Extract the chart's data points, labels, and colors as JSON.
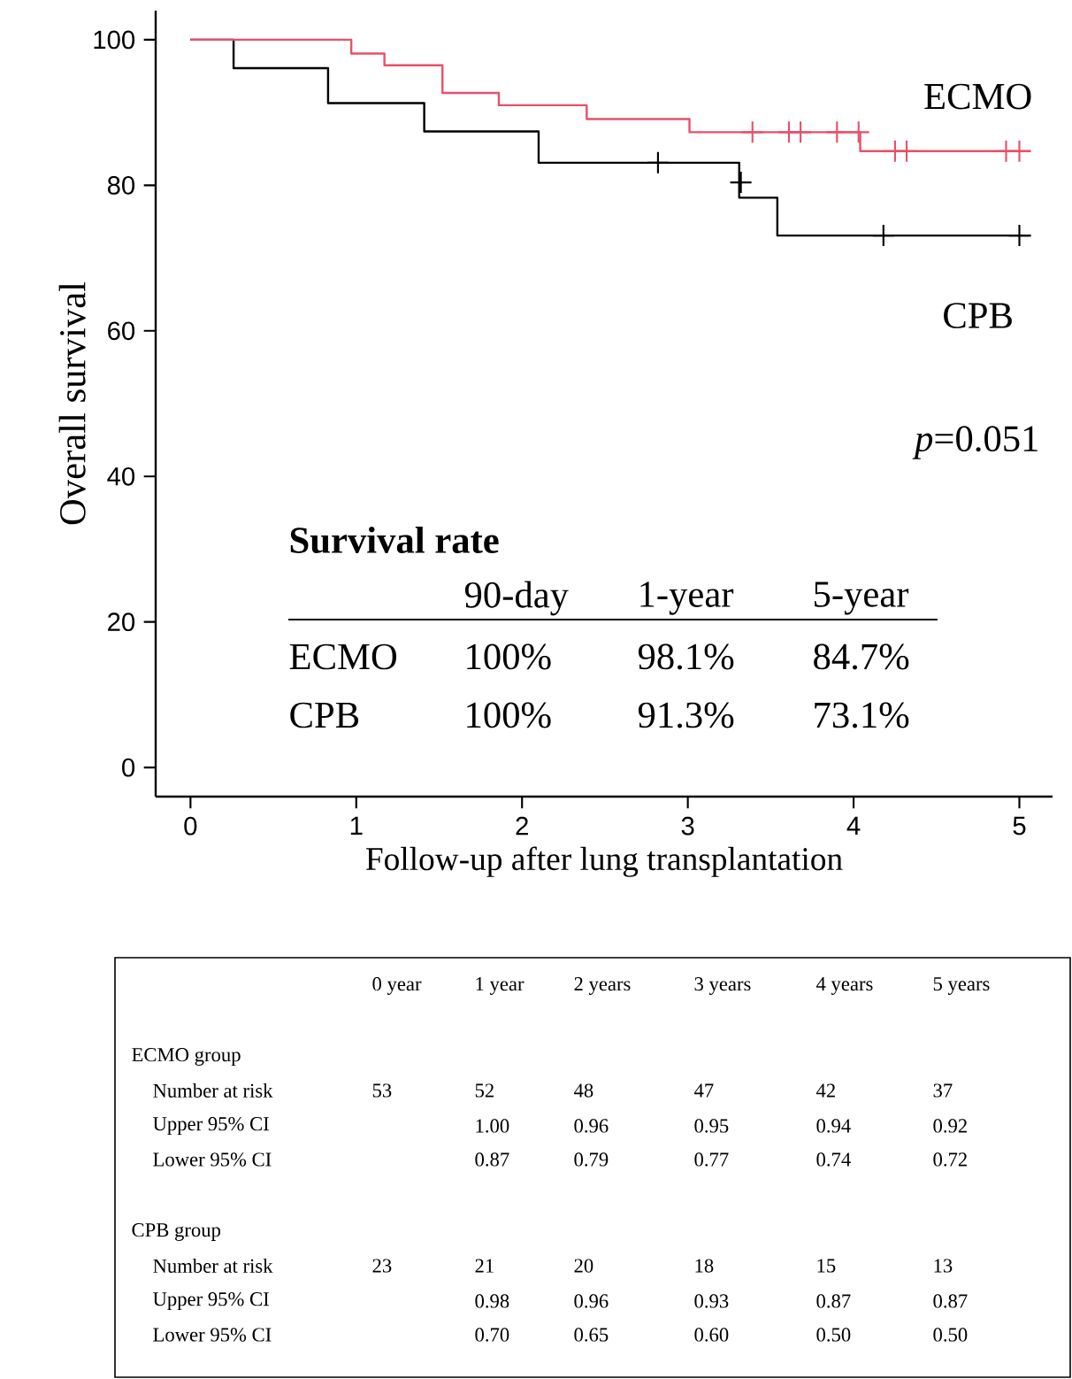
{
  "chart_data": {
    "type": "step",
    "xlabel": "Follow-up after lung transplantation",
    "ylabel": "Overall survival",
    "xlim": [
      -0.21,
      5.2
    ],
    "ylim": [
      -4,
      104
    ],
    "xticks": [
      0,
      1,
      2,
      3,
      4,
      5
    ],
    "yticks": [
      0,
      20,
      40,
      60,
      80,
      100
    ],
    "line_style": "solid",
    "series": [
      {
        "name": "ECMO",
        "color": "#e8506a",
        "x": [
          0,
          0.97,
          1.17,
          1.52,
          1.86,
          2.39,
          3.01,
          4.04,
          5.07
        ],
        "values": [
          100,
          98.1,
          96.5,
          92.7,
          91.0,
          89.1,
          87.3,
          84.7,
          84.7
        ]
      },
      {
        "name": "CPB",
        "color": "#000000",
        "x": [
          0,
          0.26,
          0.83,
          1.41,
          2.1,
          3.31,
          3.54,
          5.07
        ],
        "values": [
          100,
          96.1,
          91.3,
          87.4,
          83.1,
          78.3,
          73.1,
          73.1
        ]
      },
      {
        "type": "scatter",
        "marker": "cross",
        "color": "#e8506a",
        "x": [
          3.39,
          3.61,
          3.68,
          3.9,
          4.03,
          4.25,
          4.32,
          4.92,
          5.0
        ],
        "values": [
          87.3,
          87.3,
          87.3,
          87.3,
          87.3,
          84.7,
          84.7,
          84.7,
          84.7
        ]
      },
      {
        "type": "scatter",
        "marker": "cross",
        "color": "#000000",
        "x": [
          2.82,
          3.32,
          4.18,
          5.0
        ],
        "values": [
          83.1,
          80.4,
          73.1,
          73.1
        ]
      }
    ],
    "annotations": [
      "*p*=0.051",
      "Survival rate",
      "90-day",
      "1-year",
      "5-year",
      "ECMO",
      "100%",
      "98.1%",
      "84.7%",
      "CPB",
      "100%",
      "91.3%",
      "73.1%",
      "0 year",
      "1 year",
      "2 years",
      "3 years",
      "4 years",
      "5 years",
      "ECMO group",
      "Number at risk",
      "53",
      "52",
      "48",
      "47",
      "42",
      "37",
      "Upper 95% CI",
      "1.00",
      "0.96",
      "0.95",
      "0.94",
      "0.92",
      "Lower 95% CI",
      "0.87",
      "0.79",
      "0.77",
      "0.74",
      "0.72",
      "CPB group",
      "Number at risk",
      "23",
      "21",
      "20",
      "18",
      "15",
      "13",
      "Upper 95% CI",
      "0.98",
      "0.96",
      "0.93",
      "0.87",
      "0.87",
      "Lower 95% CI",
      "0.70",
      "0.65",
      "0.60",
      "0.50",
      "0.50"
    ]
  }
}
